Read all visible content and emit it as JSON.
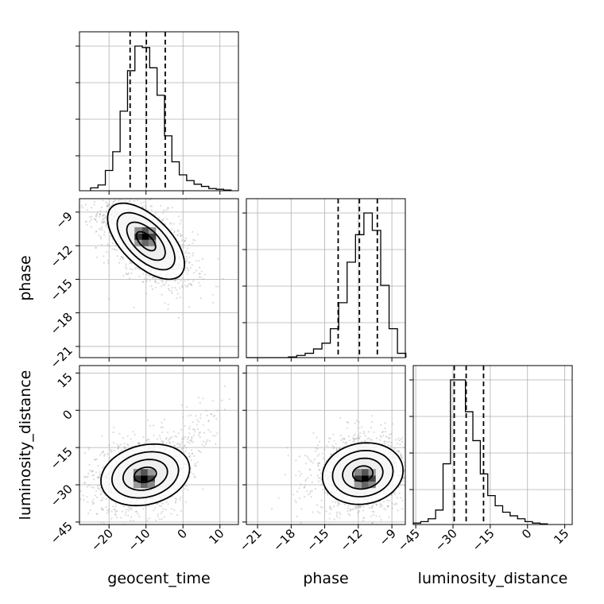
{
  "chart_data": {
    "type": "corner",
    "parameters": [
      "geocent_time",
      "phase",
      "luminosity_distance"
    ],
    "colors": {
      "line": "#000000",
      "grid": "#b0b0b0",
      "samples": "#9a9a9a"
    },
    "grid": true,
    "axes": {
      "geocent_time": {
        "range": [
          -28,
          15
        ],
        "ticks": [
          -20,
          -10,
          0,
          10
        ],
        "tick_labels": [
          "−20",
          "−10",
          "0",
          "10"
        ]
      },
      "phase": {
        "range": [
          -22,
          -7.8
        ],
        "ticks": [
          -21,
          -18,
          -15,
          -12,
          -9
        ],
        "tick_labels": [
          "−21",
          "−18",
          "−15",
          "−12",
          "−9"
        ]
      },
      "luminosity_distance": {
        "range": [
          -46,
          18
        ],
        "ticks": [
          -45,
          -30,
          -15,
          0,
          15
        ],
        "tick_labels": [
          "−45",
          "−30",
          "−15",
          "0",
          "15"
        ]
      }
    },
    "histograms": [
      {
        "parameter": "geocent_time",
        "bin_edges": [
          -25,
          -23,
          -21,
          -19,
          -17,
          -15,
          -13,
          -11,
          -9,
          -7,
          -5,
          -3,
          -1,
          1,
          3,
          5,
          7,
          9,
          11,
          13
        ],
        "counts": [
          0.02,
          0.04,
          0.14,
          0.27,
          0.55,
          0.83,
          1.0,
          0.99,
          0.85,
          0.66,
          0.38,
          0.2,
          0.11,
          0.07,
          0.045,
          0.03,
          0.015,
          0.01,
          0.005
        ],
        "quantiles": [
          -14.3,
          -9.9,
          -4.8
        ]
      },
      {
        "parameter": "phase",
        "bin_edges": [
          -22,
          -21.25,
          -20.5,
          -19.75,
          -19,
          -18.25,
          -17.5,
          -16.75,
          -16,
          -15.25,
          -14.5,
          -13.75,
          -13,
          -12.25,
          -11.5,
          -10.75,
          -10,
          -9.25,
          -8.5,
          -7.75
        ],
        "counts": [
          0,
          0,
          0,
          0,
          0,
          0.005,
          0.015,
          0.03,
          0.06,
          0.1,
          0.2,
          0.38,
          0.66,
          0.85,
          1.0,
          0.88,
          0.5,
          0.2,
          0.03
        ],
        "quantiles": [
          -13.8,
          -11.9,
          -10.3
        ]
      },
      {
        "parameter": "luminosity_distance",
        "bin_edges": [
          -46,
          -43,
          -40,
          -37,
          -34,
          -31,
          -28,
          -25,
          -22,
          -19,
          -16,
          -13,
          -10,
          -7,
          -4,
          -1,
          2,
          5,
          8
        ],
        "counts": [
          0.01,
          0.02,
          0.04,
          0.1,
          0.42,
          1.0,
          1.0,
          0.78,
          0.58,
          0.35,
          0.2,
          0.13,
          0.085,
          0.06,
          0.04,
          0.02,
          0.01,
          0.005
        ],
        "quantiles": [
          -29.5,
          -24.7,
          -17.7
        ]
      }
    ],
    "joint": [
      {
        "x": "geocent_time",
        "y": "phase",
        "mean": [
          -10,
          -11.6
        ],
        "sd": [
          5.2,
          1.7
        ],
        "correlation": -0.6,
        "density_peak": [
          -10.2,
          -11.2
        ],
        "contour_levels_sigma": [
          0.5,
          1,
          1.5,
          2
        ]
      },
      {
        "x": "geocent_time",
        "y": "luminosity_distance",
        "mean": [
          -10.2,
          -26
        ],
        "sd": [
          6,
          6.2
        ],
        "correlation": 0.2,
        "density_peak": [
          -10.5,
          -27.5
        ],
        "contour_levels_sigma": [
          0.5,
          1,
          1.5,
          2
        ]
      },
      {
        "x": "phase",
        "y": "luminosity_distance",
        "mean": [
          -11.6,
          -25.5
        ],
        "sd": [
          1.8,
          6.2
        ],
        "correlation": 0.1,
        "density_peak": [
          -11.4,
          -27.5
        ],
        "contour_levels_sigma": [
          0.5,
          1,
          1.5,
          2
        ]
      }
    ]
  }
}
